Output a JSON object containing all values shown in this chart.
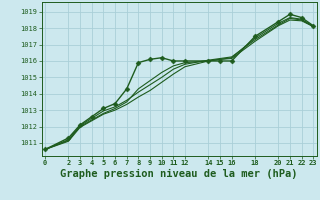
{
  "bg_color": "#cce8ee",
  "grid_color": "#aacfd8",
  "line_color": "#1e5c1e",
  "marker_color": "#1e5c1e",
  "title": "Graphe pression niveau de la mer (hPa)",
  "title_fontsize": 7.5,
  "xticks": [
    0,
    2,
    3,
    4,
    5,
    6,
    7,
    8,
    9,
    10,
    11,
    12,
    14,
    15,
    16,
    18,
    20,
    21,
    22,
    23
  ],
  "xtick_labels": [
    "0",
    "2",
    "3",
    "4",
    "5",
    "6",
    "7",
    "8",
    "9",
    "10",
    "11",
    "12",
    "14",
    "15",
    "16",
    "18",
    "20",
    "21",
    "22",
    "23"
  ],
  "ylim": [
    1010.2,
    1019.6
  ],
  "xlim": [
    -0.3,
    23.3
  ],
  "yticks": [
    1011,
    1012,
    1013,
    1014,
    1015,
    1016,
    1017,
    1018,
    1019
  ],
  "series": [
    {
      "x": [
        0,
        2,
        3,
        4,
        5,
        6,
        7,
        8,
        9,
        10,
        11,
        12,
        14,
        15,
        16,
        18,
        20,
        21,
        22,
        23
      ],
      "y": [
        1010.6,
        1011.3,
        1012.1,
        1012.6,
        1013.1,
        1013.4,
        1014.3,
        1015.9,
        1016.1,
        1016.2,
        1016.0,
        1016.0,
        1016.0,
        1016.0,
        1016.0,
        1017.5,
        1018.4,
        1018.85,
        1018.65,
        1018.15
      ],
      "marker": "D",
      "markersize": 2.5,
      "lw": 1.0,
      "zorder": 4
    },
    {
      "x": [
        0,
        2,
        3,
        4,
        5,
        6,
        7,
        8,
        9,
        10,
        11,
        12,
        14,
        15,
        16,
        18,
        20,
        21,
        22,
        23
      ],
      "y": [
        1010.6,
        1011.2,
        1012.0,
        1012.4,
        1012.8,
        1013.1,
        1013.5,
        1014.3,
        1014.8,
        1015.3,
        1015.7,
        1015.9,
        1016.0,
        1016.1,
        1016.2,
        1017.4,
        1018.3,
        1018.65,
        1018.55,
        1018.1
      ],
      "marker": null,
      "markersize": 0,
      "lw": 0.8,
      "zorder": 2
    },
    {
      "x": [
        0,
        2,
        3,
        4,
        5,
        6,
        7,
        8,
        9,
        10,
        11,
        12,
        14,
        15,
        16,
        18,
        20,
        21,
        22,
        23
      ],
      "y": [
        1010.6,
        1011.15,
        1012.05,
        1012.5,
        1012.95,
        1013.2,
        1013.6,
        1014.1,
        1014.55,
        1015.0,
        1015.5,
        1015.8,
        1016.05,
        1016.15,
        1016.25,
        1017.3,
        1018.2,
        1018.6,
        1018.5,
        1018.1
      ],
      "marker": null,
      "markersize": 0,
      "lw": 0.8,
      "zorder": 2
    },
    {
      "x": [
        0,
        2,
        3,
        4,
        5,
        6,
        7,
        8,
        9,
        10,
        11,
        12,
        14,
        15,
        16,
        18,
        20,
        21,
        22,
        23
      ],
      "y": [
        1010.6,
        1011.1,
        1011.95,
        1012.35,
        1012.75,
        1013.0,
        1013.35,
        1013.8,
        1014.2,
        1014.7,
        1015.2,
        1015.65,
        1016.0,
        1016.1,
        1016.15,
        1017.2,
        1018.15,
        1018.5,
        1018.45,
        1018.1
      ],
      "marker": null,
      "markersize": 0,
      "lw": 0.8,
      "zorder": 2
    }
  ]
}
